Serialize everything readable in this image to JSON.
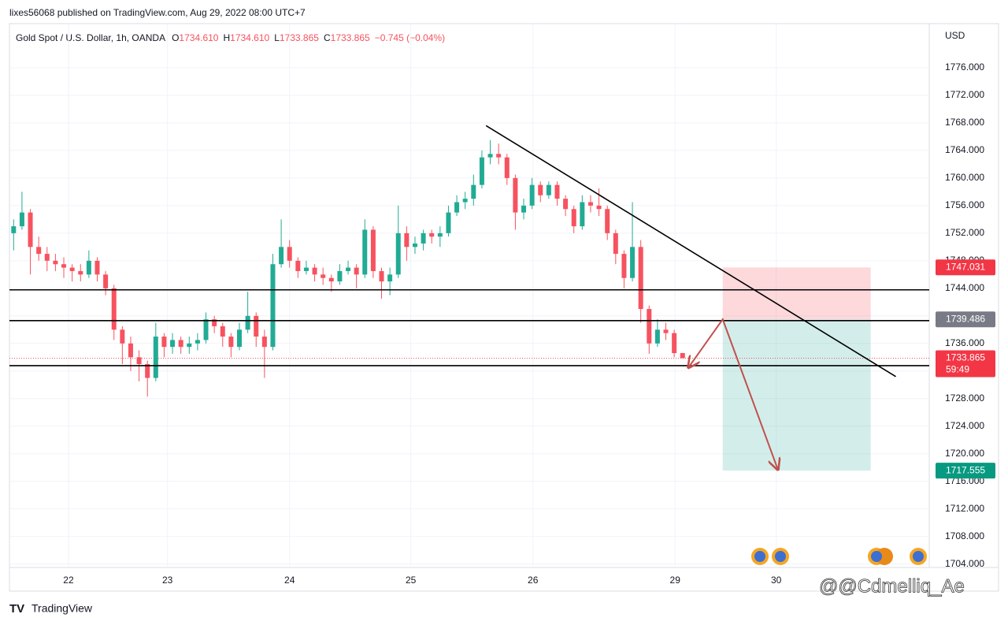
{
  "header": {
    "text": "lixes56068 published on TradingView.com, Aug 29, 2022 08:00 UTC+7"
  },
  "chart_data": {
    "type": "candlestick",
    "title": "Gold Spot / U.S. Dollar, 1h, OANDA",
    "legend": [
      {
        "key": "O",
        "value": "1734.610"
      },
      {
        "key": "H",
        "value": "1734.610"
      },
      {
        "key": "L",
        "value": "1733.865"
      },
      {
        "key": "C",
        "value": "1733.865"
      }
    ],
    "change": "−0.745 (−0.04%)",
    "y_axis_label": "USD",
    "up_color": "#22ab94",
    "down_color": "#f7525f",
    "x": [
      0.5,
      1.5,
      2.5,
      3.5,
      4.5,
      5.5,
      6.5,
      7.5,
      8.5,
      9.5,
      10.5,
      11.5,
      12.5,
      13.5,
      14.5,
      15.5,
      16.5,
      17.5,
      18.5,
      19.5,
      20.5,
      21.5,
      22.5,
      23.5,
      24.5,
      25.5,
      26.5,
      27.5,
      28.5,
      29.5,
      30.5,
      31.5,
      32.5,
      33.5,
      34.5,
      35.5,
      36.5,
      37.5,
      38.5,
      39.5,
      40.5,
      41.5,
      42.5,
      43.5,
      44.5,
      45.5,
      46.5,
      47.5,
      48.5,
      49.5,
      50.5,
      51.5,
      52.5,
      53.5,
      54.5,
      55.5,
      56.5,
      57.5,
      58.5,
      59.5,
      60.5,
      61.5,
      62.5,
      63.5,
      64.5,
      65.5,
      66.5,
      67.5,
      68.5,
      69.5,
      70.5,
      71.5,
      72.5,
      73.5,
      74.5,
      75.5,
      76.5,
      77.5,
      78.5,
      79.5,
      80.5
    ],
    "ohlc": [
      [
        1752,
        1754,
        1749.5,
        1753
      ],
      [
        1753,
        1758,
        1752.5,
        1755
      ],
      [
        1755,
        1755.5,
        1746,
        1750
      ],
      [
        1750,
        1751.5,
        1748,
        1749
      ],
      [
        1749,
        1750,
        1746.5,
        1748
      ],
      [
        1748,
        1749,
        1746.5,
        1747.5
      ],
      [
        1747.5,
        1748.5,
        1745.5,
        1747
      ],
      [
        1747,
        1747.5,
        1745,
        1746.5
      ],
      [
        1746.5,
        1747.5,
        1745,
        1746
      ],
      [
        1746,
        1749.5,
        1745.5,
        1748
      ],
      [
        1748,
        1748.5,
        1745,
        1746
      ],
      [
        1746,
        1746.5,
        1743,
        1744
      ],
      [
        1744,
        1744.5,
        1736.5,
        1738
      ],
      [
        1738,
        1738.5,
        1733,
        1736
      ],
      [
        1736,
        1737,
        1732,
        1734
      ],
      [
        1734,
        1735,
        1730.5,
        1733
      ],
      [
        1733,
        1733.5,
        1728.3,
        1731
      ],
      [
        1731,
        1739,
        1730.5,
        1737
      ],
      [
        1737,
        1737.5,
        1734,
        1735.5
      ],
      [
        1735.5,
        1737.5,
        1734.5,
        1736.5
      ],
      [
        1736.5,
        1737,
        1734.5,
        1735.5
      ],
      [
        1735.5,
        1737,
        1734.5,
        1736
      ],
      [
        1736,
        1737.5,
        1735,
        1736.5
      ],
      [
        1736.5,
        1740.5,
        1736,
        1739.5
      ],
      [
        1739.5,
        1740,
        1737.5,
        1738.5
      ],
      [
        1738.5,
        1739,
        1735.5,
        1737
      ],
      [
        1737,
        1737.5,
        1734,
        1735.5
      ],
      [
        1735.5,
        1739,
        1735,
        1738
      ],
      [
        1738,
        1743.5,
        1737.5,
        1740
      ],
      [
        1740,
        1740.5,
        1735.5,
        1737
      ],
      [
        1737,
        1738,
        1731,
        1735.5
      ],
      [
        1735.5,
        1749,
        1735,
        1747.5
      ],
      [
        1747.5,
        1754,
        1747,
        1750
      ],
      [
        1750,
        1751,
        1747,
        1748
      ],
      [
        1748,
        1748.5,
        1745.5,
        1746.5
      ],
      [
        1746.5,
        1748,
        1746,
        1747
      ],
      [
        1747,
        1747.5,
        1745,
        1746
      ],
      [
        1746,
        1747,
        1744.5,
        1745.5
      ],
      [
        1745.5,
        1746,
        1743.5,
        1745
      ],
      [
        1745,
        1747.5,
        1744.5,
        1746.5
      ],
      [
        1746.5,
        1748,
        1746,
        1747
      ],
      [
        1747,
        1747.5,
        1744,
        1746
      ],
      [
        1746,
        1754,
        1745.5,
        1752.5
      ],
      [
        1752.5,
        1753,
        1745.5,
        1746.5
      ],
      [
        1746.5,
        1747,
        1742.5,
        1745
      ],
      [
        1745,
        1747,
        1743,
        1746
      ],
      [
        1746,
        1756,
        1745.5,
        1752
      ],
      [
        1752,
        1753,
        1748,
        1750
      ],
      [
        1750,
        1751.5,
        1749,
        1750.5
      ],
      [
        1750.5,
        1752.5,
        1749.5,
        1752
      ],
      [
        1752,
        1752.5,
        1750.5,
        1751.5
      ],
      [
        1751.5,
        1753,
        1750,
        1752
      ],
      [
        1752,
        1756,
        1751.5,
        1755
      ],
      [
        1755,
        1757.5,
        1754.5,
        1756.5
      ],
      [
        1756.5,
        1758,
        1755.5,
        1757
      ],
      [
        1757,
        1760.5,
        1756,
        1759
      ],
      [
        1759,
        1764,
        1758.5,
        1763
      ],
      [
        1763,
        1765.5,
        1762,
        1763.5
      ],
      [
        1763.5,
        1765,
        1762,
        1763
      ],
      [
        1763,
        1763.5,
        1759,
        1760
      ],
      [
        1760,
        1760.5,
        1752.5,
        1755
      ],
      [
        1755,
        1757,
        1754,
        1756
      ],
      [
        1756,
        1760,
        1755.5,
        1759
      ],
      [
        1759,
        1759.5,
        1756.5,
        1757.5
      ],
      [
        1757.5,
        1759.5,
        1757,
        1759
      ],
      [
        1759,
        1759.5,
        1756,
        1757
      ],
      [
        1757,
        1757.5,
        1754.5,
        1755.5
      ],
      [
        1755.5,
        1756,
        1752,
        1753
      ],
      [
        1753,
        1757.5,
        1752.5,
        1756.5
      ],
      [
        1756.5,
        1757.5,
        1755,
        1756
      ],
      [
        1756,
        1758.5,
        1754.5,
        1755.5
      ],
      [
        1755.5,
        1756,
        1751,
        1752
      ],
      [
        1752,
        1752.5,
        1747.5,
        1749
      ],
      [
        1749,
        1749.5,
        1744,
        1745.5
      ],
      [
        1745.5,
        1756.5,
        1745,
        1750
      ],
      [
        1750,
        1751,
        1739,
        1741
      ],
      [
        1741,
        1741.5,
        1734.5,
        1736
      ],
      [
        1736,
        1739.5,
        1735.5,
        1738
      ],
      [
        1738,
        1739,
        1736.5,
        1737.5
      ],
      [
        1737.5,
        1738,
        1734,
        1734.6
      ],
      [
        1734.61,
        1734.61,
        1733.865,
        1733.865
      ]
    ],
    "xlim": [
      0,
      110
    ],
    "xticks": [
      {
        "value": 7.06,
        "label": "22"
      },
      {
        "value": 18.9,
        "label": "23"
      },
      {
        "value": 33.5,
        "label": "24"
      },
      {
        "value": 48.0,
        "label": "25"
      },
      {
        "value": 62.6,
        "label": "26"
      },
      {
        "value": 79.6,
        "label": "29"
      },
      {
        "value": 91.7,
        "label": "30"
      }
    ],
    "ylim": [
      1703.5,
      1782.4
    ],
    "yticks": [
      {
        "value": 1704,
        "label": "1704.000"
      },
      {
        "value": 1708,
        "label": "1708.000"
      },
      {
        "value": 1712,
        "label": "1712.000"
      },
      {
        "value": 1716,
        "label": "1716.000"
      },
      {
        "value": 1720,
        "label": "1720.000"
      },
      {
        "value": 1724,
        "label": "1724.000"
      },
      {
        "value": 1728,
        "label": "1728.000"
      },
      {
        "value": 1732,
        "label": "1732.000"
      },
      {
        "value": 1736,
        "label": "1736.000"
      },
      {
        "value": 1740,
        "label": "1740.000"
      },
      {
        "value": 1744,
        "label": "1744.000"
      },
      {
        "value": 1748,
        "label": "1748.000"
      },
      {
        "value": 1752,
        "label": "1752.000"
      },
      {
        "value": 1756,
        "label": "1756.000"
      },
      {
        "value": 1760,
        "label": "1760.000"
      },
      {
        "value": 1764,
        "label": "1764.000"
      },
      {
        "value": 1768,
        "label": "1768.000"
      },
      {
        "value": 1772,
        "label": "1772.000"
      },
      {
        "value": 1776,
        "label": "1776.000"
      }
    ],
    "grid": true,
    "horizontal_lines": [
      1743.78,
      1739.31,
      1732.78
    ],
    "trend_line": {
      "x": [
        57,
        106
      ],
      "y": [
        1767.6,
        1731.2
      ]
    },
    "position": {
      "x": [
        85.3,
        103
      ],
      "stop": 1747.031,
      "entry": 1739.486,
      "target": 1717.555
    },
    "projection": {
      "x": [
        81.2,
        85.3,
        91.9
      ],
      "y": [
        1732.5,
        1739.5,
        1717.7
      ]
    },
    "last_price": 1733.865,
    "countdown": "59:49"
  },
  "footer": {
    "brand": "TradingView",
    "watermark": "@@Cdmelliq_Ae"
  }
}
